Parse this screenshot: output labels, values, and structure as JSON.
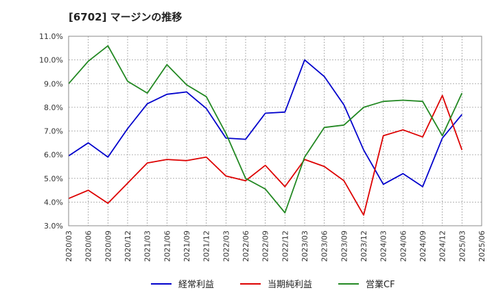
{
  "chart_data": {
    "type": "line",
    "title": "[6702]  マージンの推移",
    "xlabel": "",
    "ylabel": "",
    "ylim": [
      3.0,
      11.0
    ],
    "yticks": [
      "3.0%",
      "4.0%",
      "5.0%",
      "6.0%",
      "7.0%",
      "8.0%",
      "9.0%",
      "10.0%",
      "11.0%"
    ],
    "grid": true,
    "legend_position": "bottom",
    "categories": [
      "2020/03",
      "2020/06",
      "2020/09",
      "2020/12",
      "2021/03",
      "2021/06",
      "2021/09",
      "2021/12",
      "2022/03",
      "2022/06",
      "2022/09",
      "2022/12",
      "2023/03",
      "2023/06",
      "2023/09",
      "2023/12",
      "2024/03",
      "2024/06",
      "2024/09",
      "2024/12",
      "2025/03",
      "2025/06"
    ],
    "series": [
      {
        "name": "経常利益",
        "color": "#0000cc",
        "values": [
          5.95,
          6.5,
          5.9,
          7.1,
          8.15,
          8.55,
          8.65,
          7.95,
          6.7,
          6.65,
          7.75,
          7.8,
          10.0,
          9.3,
          8.1,
          6.2,
          4.75,
          5.2,
          4.65,
          6.7,
          7.7,
          null
        ]
      },
      {
        "name": "当期純利益",
        "color": "#dd0000",
        "values": [
          4.15,
          4.5,
          3.95,
          4.8,
          5.65,
          5.8,
          5.75,
          5.9,
          5.1,
          4.9,
          5.55,
          4.65,
          5.8,
          5.5,
          4.9,
          3.45,
          6.8,
          7.05,
          6.75,
          8.5,
          6.2,
          null
        ]
      },
      {
        "name": "営業CF",
        "color": "#228822",
        "values": [
          9.0,
          9.95,
          10.6,
          9.1,
          8.6,
          9.8,
          8.95,
          8.45,
          6.9,
          5.0,
          4.55,
          3.55,
          5.9,
          7.15,
          7.25,
          8.0,
          8.25,
          8.3,
          8.25,
          6.8,
          8.6,
          null
        ]
      }
    ]
  }
}
